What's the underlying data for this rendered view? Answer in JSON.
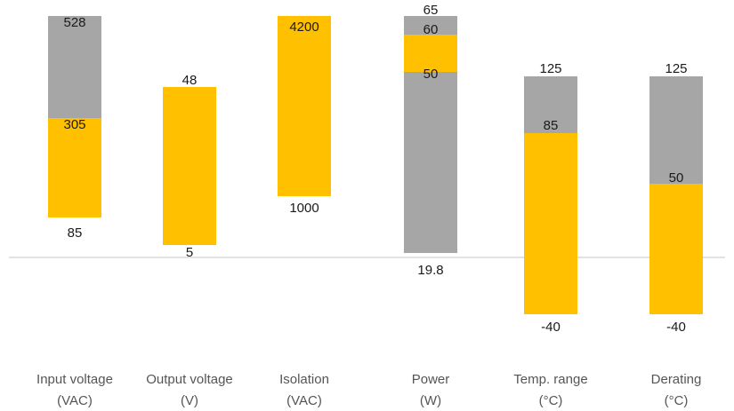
{
  "chart_data": {
    "type": "bar",
    "colors": {
      "range": "#ffc000",
      "extension": "#a6a6a6",
      "baseline": "#d0d0d0"
    },
    "groups": [
      {
        "name": "input-voltage",
        "label_lines": [
          "Input voltage",
          "(VAC)"
        ],
        "segments": [
          {
            "role": "range",
            "low_label": "85",
            "high_label": "305"
          },
          {
            "role": "extension",
            "high_label": "528"
          }
        ]
      },
      {
        "name": "output-voltage",
        "label_lines": [
          "Output voltage",
          "(V)"
        ],
        "segments": [
          {
            "role": "range",
            "low_label": "5",
            "high_label": "48"
          }
        ]
      },
      {
        "name": "isolation",
        "label_lines": [
          "Isolation",
          "(VAC)"
        ],
        "segments": [
          {
            "role": "range",
            "low_label": "1000",
            "high_label": "4200"
          }
        ]
      },
      {
        "name": "power",
        "label_lines": [
          "Power",
          "(W)"
        ],
        "segments": [
          {
            "role": "extension",
            "low_label": "19.8",
            "high_label": "50"
          },
          {
            "role": "range",
            "high_label": "60"
          },
          {
            "role": "extension",
            "high_label": "65"
          }
        ]
      },
      {
        "name": "temp-range",
        "label_lines": [
          "Temp. range",
          "(°C)"
        ],
        "segments": [
          {
            "role": "range",
            "low_label": "-40",
            "high_label": "85"
          },
          {
            "role": "extension",
            "high_label": "125"
          }
        ]
      },
      {
        "name": "derating",
        "label_lines": [
          "Derating",
          "(°C)"
        ],
        "segments": [
          {
            "role": "range",
            "low_label": "-40",
            "high_label": "50"
          },
          {
            "role": "extension",
            "high_label": "125"
          }
        ]
      }
    ]
  }
}
